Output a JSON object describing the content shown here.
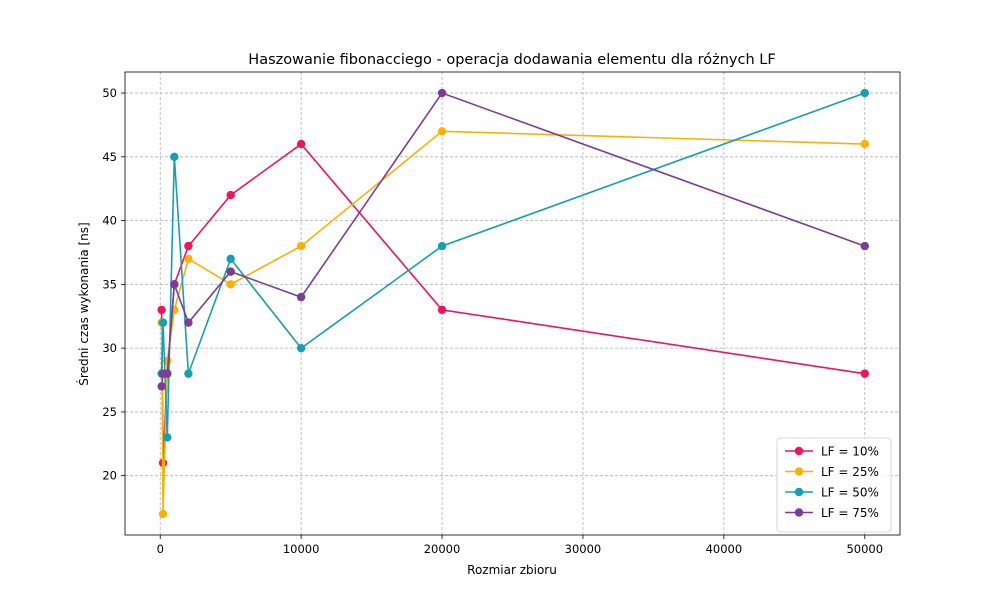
{
  "chart_data": {
    "type": "line",
    "title": "Haszowanie fibonacciego - operacja dodawania elementu dla różnych LF",
    "xlabel": "Rozmiar zbioru",
    "ylabel": "Średni czas wykonania [ns]",
    "xlim": [
      -2500,
      52500
    ],
    "ylim": [
      15.35,
      51.65
    ],
    "xticks": [
      0,
      10000,
      20000,
      30000,
      40000,
      50000
    ],
    "yticks": [
      20,
      25,
      30,
      35,
      40,
      45,
      50
    ],
    "grid": true,
    "legend_position": "lower-right",
    "x": [
      100,
      200,
      500,
      1000,
      2000,
      5000,
      10000,
      20000,
      50000
    ],
    "series": [
      {
        "name": "LF = 10%",
        "color": "#f0145a",
        "values": [
          33,
          21,
          28,
          35,
          38,
          42,
          46,
          33,
          28
        ]
      },
      {
        "name": "LF = 25%",
        "color": "#ffb000",
        "values": [
          32,
          17,
          29,
          33,
          37,
          35,
          38,
          47,
          46
        ]
      },
      {
        "name": "LF = 50%",
        "color": "#12a0b4",
        "values": [
          28,
          32,
          23,
          45,
          28,
          37,
          30,
          38,
          50
        ]
      },
      {
        "name": "LF = 75%",
        "color": "#7d3c98",
        "values": [
          27,
          28,
          28,
          35,
          32,
          36,
          34,
          50,
          38
        ]
      }
    ]
  }
}
